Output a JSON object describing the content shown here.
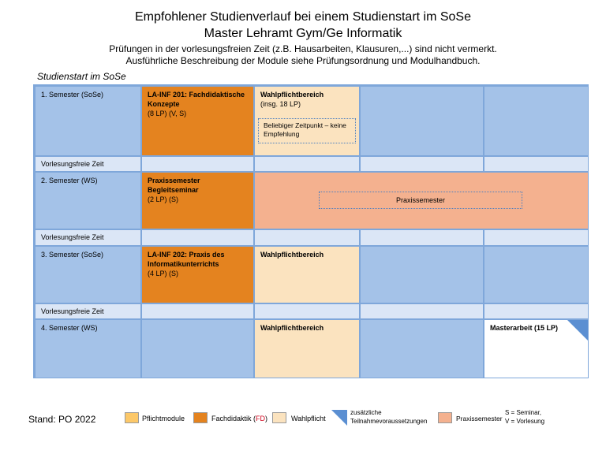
{
  "header": {
    "title1": "Empfohlener Studienverlauf bei einem Studienstart im SoSe",
    "title2": "Master Lehramt Gym/Ge Informatik",
    "note1": "Prüfungen in der vorlesungsfreien Zeit (z.B. Hausarbeiten, Klausuren,...) sind nicht vermerkt.",
    "note2": "Ausführliche Beschreibung der Module siehe Prüfungsordnung und Modulhandbuch."
  },
  "section_label": "Studienstart im SoSe",
  "rows": {
    "sem1": "1. Semester (SoSe)",
    "free1": "Vorlesungsfreie Zeit",
    "sem2": "2. Semester (WS)",
    "free2": "Vorlesungsfreie Zeit",
    "sem3": "3. Semester (SoSe)",
    "free3": "Vorlesungsfreie Zeit",
    "sem4": "4. Semester (WS)"
  },
  "modules": {
    "inf201_title": "LA-INF 201: Fachdidaktische Konzepte",
    "inf201_lp": "(8 LP) (V, S)",
    "wpb1_title": "Wahlpflichtbereich",
    "wpb1_lp": "(insg. 18 LP)",
    "wpb1_note": "Beliebiger Zeitpunkt – keine Empfehlung",
    "praxis_title": "Praxissemester Begleitseminar",
    "praxis_lp": "(2 LP) (S)",
    "praxissemester": "Praxissemester",
    "inf202_title": "LA-INF 202: Praxis des Informatikunterrichts",
    "inf202_lp": "(4 LP) (S)",
    "wpb3_title": "Wahlpflichtbereich",
    "wpb4_title": "Wahlpflichtbereich",
    "master": "Masterarbeit (15 LP)"
  },
  "legend": {
    "stand": "Stand: PO 2022",
    "pflicht": "Pflichtmodule",
    "fachdidaktik": "Fachdidaktik (",
    "fd": "FD",
    "fachdidaktik_end": ")",
    "wahlpflicht": "Wahlpflicht",
    "zusaetzlich1": "zusätzliche",
    "zusaetzlich2": "Teilnahmevoraussetzungen",
    "praxis": "Praxissemester",
    "abk1": "S = Seminar,",
    "abk2": "V = Vorlesung"
  },
  "colors": {
    "blue": "#a4c2e8",
    "light_blue": "#dbe6f6",
    "orange": "#e4831f",
    "beige": "#fbe3bf",
    "pflicht_yellow": "#fcc869",
    "salmon": "#f4b18f",
    "fd_red": "#d0021b"
  }
}
